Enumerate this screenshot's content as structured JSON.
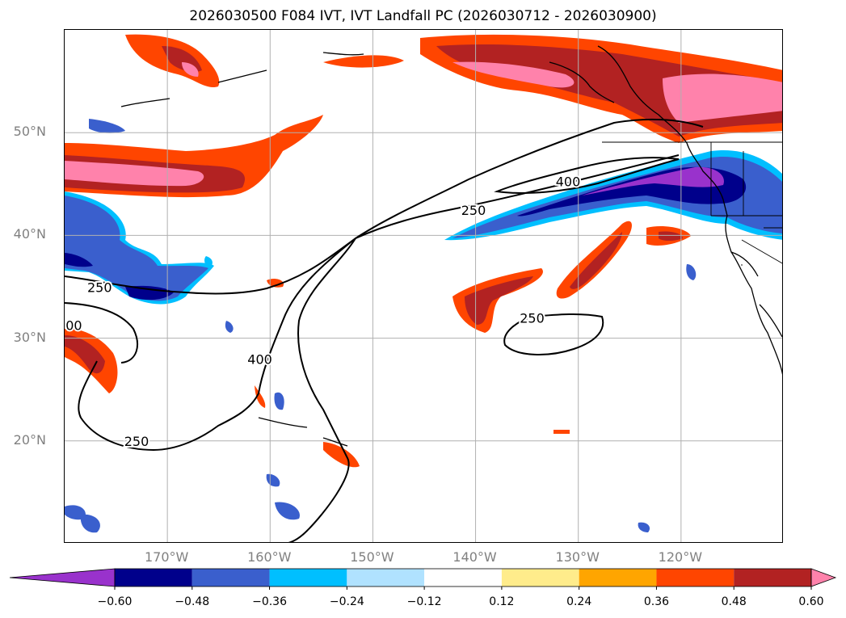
{
  "title": "2026030500 F084 IVT, IVT Landfall PC (2026030712 - 2026030900)",
  "lat_labels": [
    {
      "label": "50°N",
      "lat": 50
    },
    {
      "label": "40°N",
      "lat": 40
    },
    {
      "label": "30°N",
      "lat": 30
    },
    {
      "label": "20°N",
      "lat": 20
    }
  ],
  "lon_labels": [
    {
      "label": "170°W",
      "lon": -170
    },
    {
      "label": "160°W",
      "lon": -160
    },
    {
      "label": "150°W",
      "lon": -150
    },
    {
      "label": "140°W",
      "lon": -140
    },
    {
      "label": "130°W",
      "lon": -130
    },
    {
      "label": "120°W",
      "lon": -120
    }
  ],
  "extent": {
    "lon_min": -180,
    "lon_max": -110,
    "lat_min": 10,
    "lat_max": 60
  },
  "contour_labels": [
    {
      "text": "250",
      "lon": -176.6,
      "lat": 34.5
    },
    {
      "text": "250",
      "lon": -140.2,
      "lat": 42.0
    },
    {
      "text": "250",
      "lon": -173.0,
      "lat": 19.5
    },
    {
      "text": "250",
      "lon": -134.5,
      "lat": 31.5
    },
    {
      "text": "400",
      "lon": -131.0,
      "lat": 44.8
    },
    {
      "text": "400",
      "lon": -161.0,
      "lat": 27.5
    },
    {
      "text": "00",
      "lon": -179.1,
      "lat": 30.8
    }
  ],
  "colorbar": {
    "colors": [
      "#9932cc",
      "#00008b",
      "#3a5fcd",
      "#00bfff",
      "#b0e2ff",
      "#ffffff",
      "#ffec8b",
      "#ffa500",
      "#ff4500",
      "#b22222",
      "#ff82ab"
    ],
    "ticks": [
      "−0.60",
      "−0.48",
      "−0.36",
      "−0.24",
      "−0.12",
      "0.12",
      "0.24",
      "0.36",
      "0.48",
      "0.60"
    ]
  }
}
